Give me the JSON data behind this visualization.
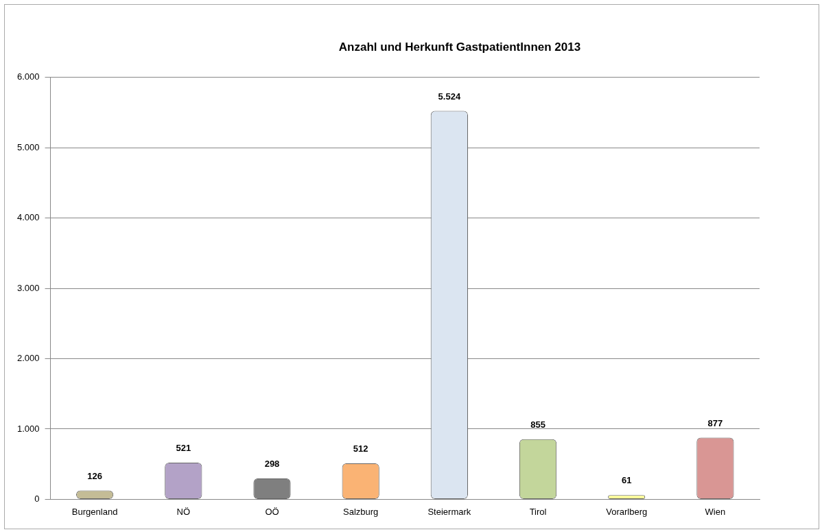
{
  "chart_data": {
    "type": "bar",
    "title": "Anzahl und Herkunft GastpatientInnen 2013",
    "categories": [
      "Burgenland",
      "NÖ",
      "OÖ",
      "Salzburg",
      "Steiermark",
      "Tirol",
      "Vorarlberg",
      "Wien"
    ],
    "values": [
      126,
      521,
      298,
      512,
      5524,
      855,
      61,
      877
    ],
    "colors": [
      "#c4bc96",
      "#b3a2c7",
      "#7f7f7f",
      "#fab374",
      "#dbe5f1",
      "#c3d69b",
      "#ffff99",
      "#d99694"
    ],
    "value_labels": [
      "126",
      "521",
      "298",
      "512",
      "5.524",
      "855",
      "61",
      "877"
    ],
    "ylim": [
      0,
      6000
    ],
    "yticks": [
      0,
      {
        "value": 1000,
        "label": "1.000"
      },
      {
        "value": 2000,
        "label": "2.000"
      },
      {
        "value": 3000,
        "label": "3.000"
      },
      {
        "value": 4000,
        "label": "4.000"
      },
      {
        "value": 5000,
        "label": "5.000"
      },
      {
        "value": 6000,
        "label": "6.000"
      }
    ],
    "grid": "y",
    "legend": false
  }
}
